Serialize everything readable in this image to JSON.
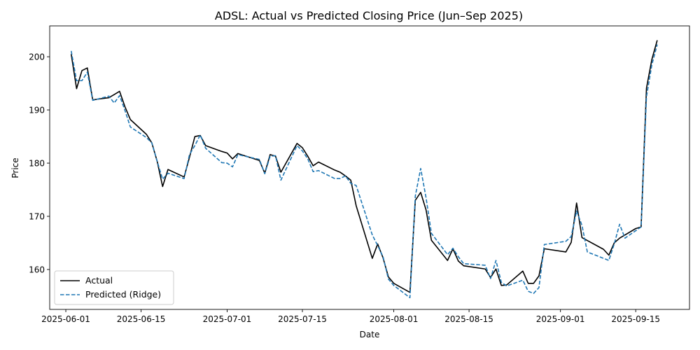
{
  "chart_data": {
    "type": "line",
    "title": "ADSL: Actual vs Predicted Closing Price (Jun–Sep 2025)",
    "xlabel": "Date",
    "ylabel": "Price",
    "xlim": [
      "2025-05-29",
      "2025-09-25"
    ],
    "ylim": [
      152.5,
      205.8
    ],
    "x_ticks": [
      "2025-06-01",
      "2025-06-15",
      "2025-07-01",
      "2025-07-15",
      "2025-08-01",
      "2025-08-15",
      "2025-09-01",
      "2025-09-15"
    ],
    "y_ticks": [
      160,
      170,
      180,
      190,
      200
    ],
    "grid": false,
    "legend": {
      "position": "lower-left"
    },
    "series": [
      {
        "name": "Actual",
        "color": "#000000",
        "style": "solid",
        "points": [
          [
            "2025-06-02",
            200.5
          ],
          [
            "2025-06-03",
            194.0
          ],
          [
            "2025-06-04",
            197.4
          ],
          [
            "2025-06-05",
            197.9
          ],
          [
            "2025-06-06",
            191.9
          ],
          [
            "2025-06-09",
            192.3
          ],
          [
            "2025-06-10",
            192.9
          ],
          [
            "2025-06-11",
            193.5
          ],
          [
            "2025-06-12",
            190.6
          ],
          [
            "2025-06-13",
            188.2
          ],
          [
            "2025-06-16",
            185.4
          ],
          [
            "2025-06-17",
            183.8
          ],
          [
            "2025-06-18",
            180.3
          ],
          [
            "2025-06-19",
            175.6
          ],
          [
            "2025-06-20",
            178.8
          ],
          [
            "2025-06-23",
            177.4
          ],
          [
            "2025-06-24",
            181.1
          ],
          [
            "2025-06-25",
            185.0
          ],
          [
            "2025-06-26",
            185.2
          ],
          [
            "2025-06-27",
            183.3
          ],
          [
            "2025-06-30",
            182.2
          ],
          [
            "2025-07-01",
            181.9
          ],
          [
            "2025-07-02",
            180.8
          ],
          [
            "2025-07-03",
            181.8
          ],
          [
            "2025-07-07",
            180.5
          ],
          [
            "2025-07-08",
            178.1
          ],
          [
            "2025-07-09",
            181.6
          ],
          [
            "2025-07-10",
            181.3
          ],
          [
            "2025-07-11",
            178.3
          ],
          [
            "2025-07-14",
            183.7
          ],
          [
            "2025-07-15",
            182.9
          ],
          [
            "2025-07-16",
            181.3
          ],
          [
            "2025-07-17",
            179.5
          ],
          [
            "2025-07-18",
            180.2
          ],
          [
            "2025-07-21",
            178.7
          ],
          [
            "2025-07-22",
            178.3
          ],
          [
            "2025-07-23",
            177.6
          ],
          [
            "2025-07-24",
            176.8
          ],
          [
            "2025-07-25",
            172.0
          ],
          [
            "2025-07-28",
            162.1
          ],
          [
            "2025-07-29",
            164.8
          ],
          [
            "2025-07-30",
            162.2
          ],
          [
            "2025-07-31",
            158.6
          ],
          [
            "2025-08-01",
            157.4
          ],
          [
            "2025-08-04",
            155.7
          ],
          [
            "2025-08-05",
            173.0
          ],
          [
            "2025-08-06",
            174.5
          ],
          [
            "2025-08-07",
            171.2
          ],
          [
            "2025-08-08",
            165.5
          ],
          [
            "2025-08-11",
            161.7
          ],
          [
            "2025-08-12",
            163.9
          ],
          [
            "2025-08-13",
            161.6
          ],
          [
            "2025-08-14",
            160.7
          ],
          [
            "2025-08-18",
            160.1
          ],
          [
            "2025-08-19",
            158.5
          ],
          [
            "2025-08-20",
            160.1
          ],
          [
            "2025-08-21",
            157.0
          ],
          [
            "2025-08-22",
            157.1
          ],
          [
            "2025-08-25",
            159.7
          ],
          [
            "2025-08-26",
            157.4
          ],
          [
            "2025-08-27",
            157.4
          ],
          [
            "2025-08-28",
            158.8
          ],
          [
            "2025-08-29",
            163.9
          ],
          [
            "2025-09-02",
            163.3
          ],
          [
            "2025-09-03",
            165.1
          ],
          [
            "2025-09-04",
            172.5
          ],
          [
            "2025-09-05",
            166.0
          ],
          [
            "2025-09-09",
            163.8
          ],
          [
            "2025-09-10",
            162.7
          ],
          [
            "2025-09-11",
            165.0
          ],
          [
            "2025-09-12",
            165.9
          ],
          [
            "2025-09-15",
            167.7
          ],
          [
            "2025-09-16",
            168.0
          ],
          [
            "2025-09-17",
            194.1
          ],
          [
            "2025-09-18",
            199.5
          ],
          [
            "2025-09-19",
            203.1
          ]
        ]
      },
      {
        "name": "Predicted (Ridge)",
        "color": "#1f77b4",
        "style": "dashed",
        "points": [
          [
            "2025-06-02",
            201.1
          ],
          [
            "2025-06-03",
            195.5
          ],
          [
            "2025-06-04",
            195.5
          ],
          [
            "2025-06-05",
            197.1
          ],
          [
            "2025-06-06",
            191.8
          ],
          [
            "2025-06-09",
            192.6
          ],
          [
            "2025-06-10",
            191.3
          ],
          [
            "2025-06-11",
            192.7
          ],
          [
            "2025-06-12",
            189.9
          ],
          [
            "2025-06-13",
            186.8
          ],
          [
            "2025-06-16",
            184.8
          ],
          [
            "2025-06-17",
            183.8
          ],
          [
            "2025-06-18",
            180.3
          ],
          [
            "2025-06-19",
            177.0
          ],
          [
            "2025-06-20",
            178.1
          ],
          [
            "2025-06-23",
            177.1
          ],
          [
            "2025-06-24",
            181.6
          ],
          [
            "2025-06-25",
            183.3
          ],
          [
            "2025-06-26",
            185.3
          ],
          [
            "2025-06-27",
            182.8
          ],
          [
            "2025-06-30",
            180.1
          ],
          [
            "2025-07-01",
            180.0
          ],
          [
            "2025-07-02",
            179.3
          ],
          [
            "2025-07-03",
            181.6
          ],
          [
            "2025-07-07",
            180.7
          ],
          [
            "2025-07-08",
            178.0
          ],
          [
            "2025-07-09",
            181.3
          ],
          [
            "2025-07-10",
            181.4
          ],
          [
            "2025-07-11",
            176.8
          ],
          [
            "2025-07-14",
            183.3
          ],
          [
            "2025-07-15",
            182.3
          ],
          [
            "2025-07-16",
            180.8
          ],
          [
            "2025-07-17",
            178.4
          ],
          [
            "2025-07-18",
            178.6
          ],
          [
            "2025-07-21",
            177.1
          ],
          [
            "2025-07-22",
            177.1
          ],
          [
            "2025-07-23",
            177.6
          ],
          [
            "2025-07-24",
            176.2
          ],
          [
            "2025-07-25",
            175.8
          ],
          [
            "2025-07-28",
            166.5
          ],
          [
            "2025-07-29",
            164.5
          ],
          [
            "2025-07-30",
            162.4
          ],
          [
            "2025-07-31",
            158.2
          ],
          [
            "2025-08-01",
            157.0
          ],
          [
            "2025-08-04",
            154.7
          ],
          [
            "2025-08-05",
            173.8
          ],
          [
            "2025-08-06",
            179.0
          ],
          [
            "2025-08-07",
            173.5
          ],
          [
            "2025-08-08",
            166.8
          ],
          [
            "2025-08-11",
            162.8
          ],
          [
            "2025-08-12",
            164.0
          ],
          [
            "2025-08-13",
            162.4
          ],
          [
            "2025-08-14",
            161.1
          ],
          [
            "2025-08-18",
            160.8
          ],
          [
            "2025-08-19",
            158.3
          ],
          [
            "2025-08-20",
            161.7
          ],
          [
            "2025-08-21",
            157.6
          ],
          [
            "2025-08-22",
            156.9
          ],
          [
            "2025-08-25",
            158.0
          ],
          [
            "2025-08-26",
            155.9
          ],
          [
            "2025-08-27",
            155.5
          ],
          [
            "2025-08-28",
            156.6
          ],
          [
            "2025-08-29",
            164.7
          ],
          [
            "2025-09-02",
            165.3
          ],
          [
            "2025-09-03",
            166.2
          ],
          [
            "2025-09-04",
            171.0
          ],
          [
            "2025-09-05",
            168.3
          ],
          [
            "2025-09-06",
            163.3
          ],
          [
            "2025-09-10",
            161.7
          ],
          [
            "2025-09-11",
            164.8
          ],
          [
            "2025-09-12",
            168.5
          ],
          [
            "2025-09-13",
            165.9
          ],
          [
            "2025-09-16",
            168.0
          ],
          [
            "2025-09-17",
            192.5
          ],
          [
            "2025-09-18",
            198.5
          ],
          [
            "2025-09-19",
            202.3
          ]
        ]
      }
    ]
  }
}
